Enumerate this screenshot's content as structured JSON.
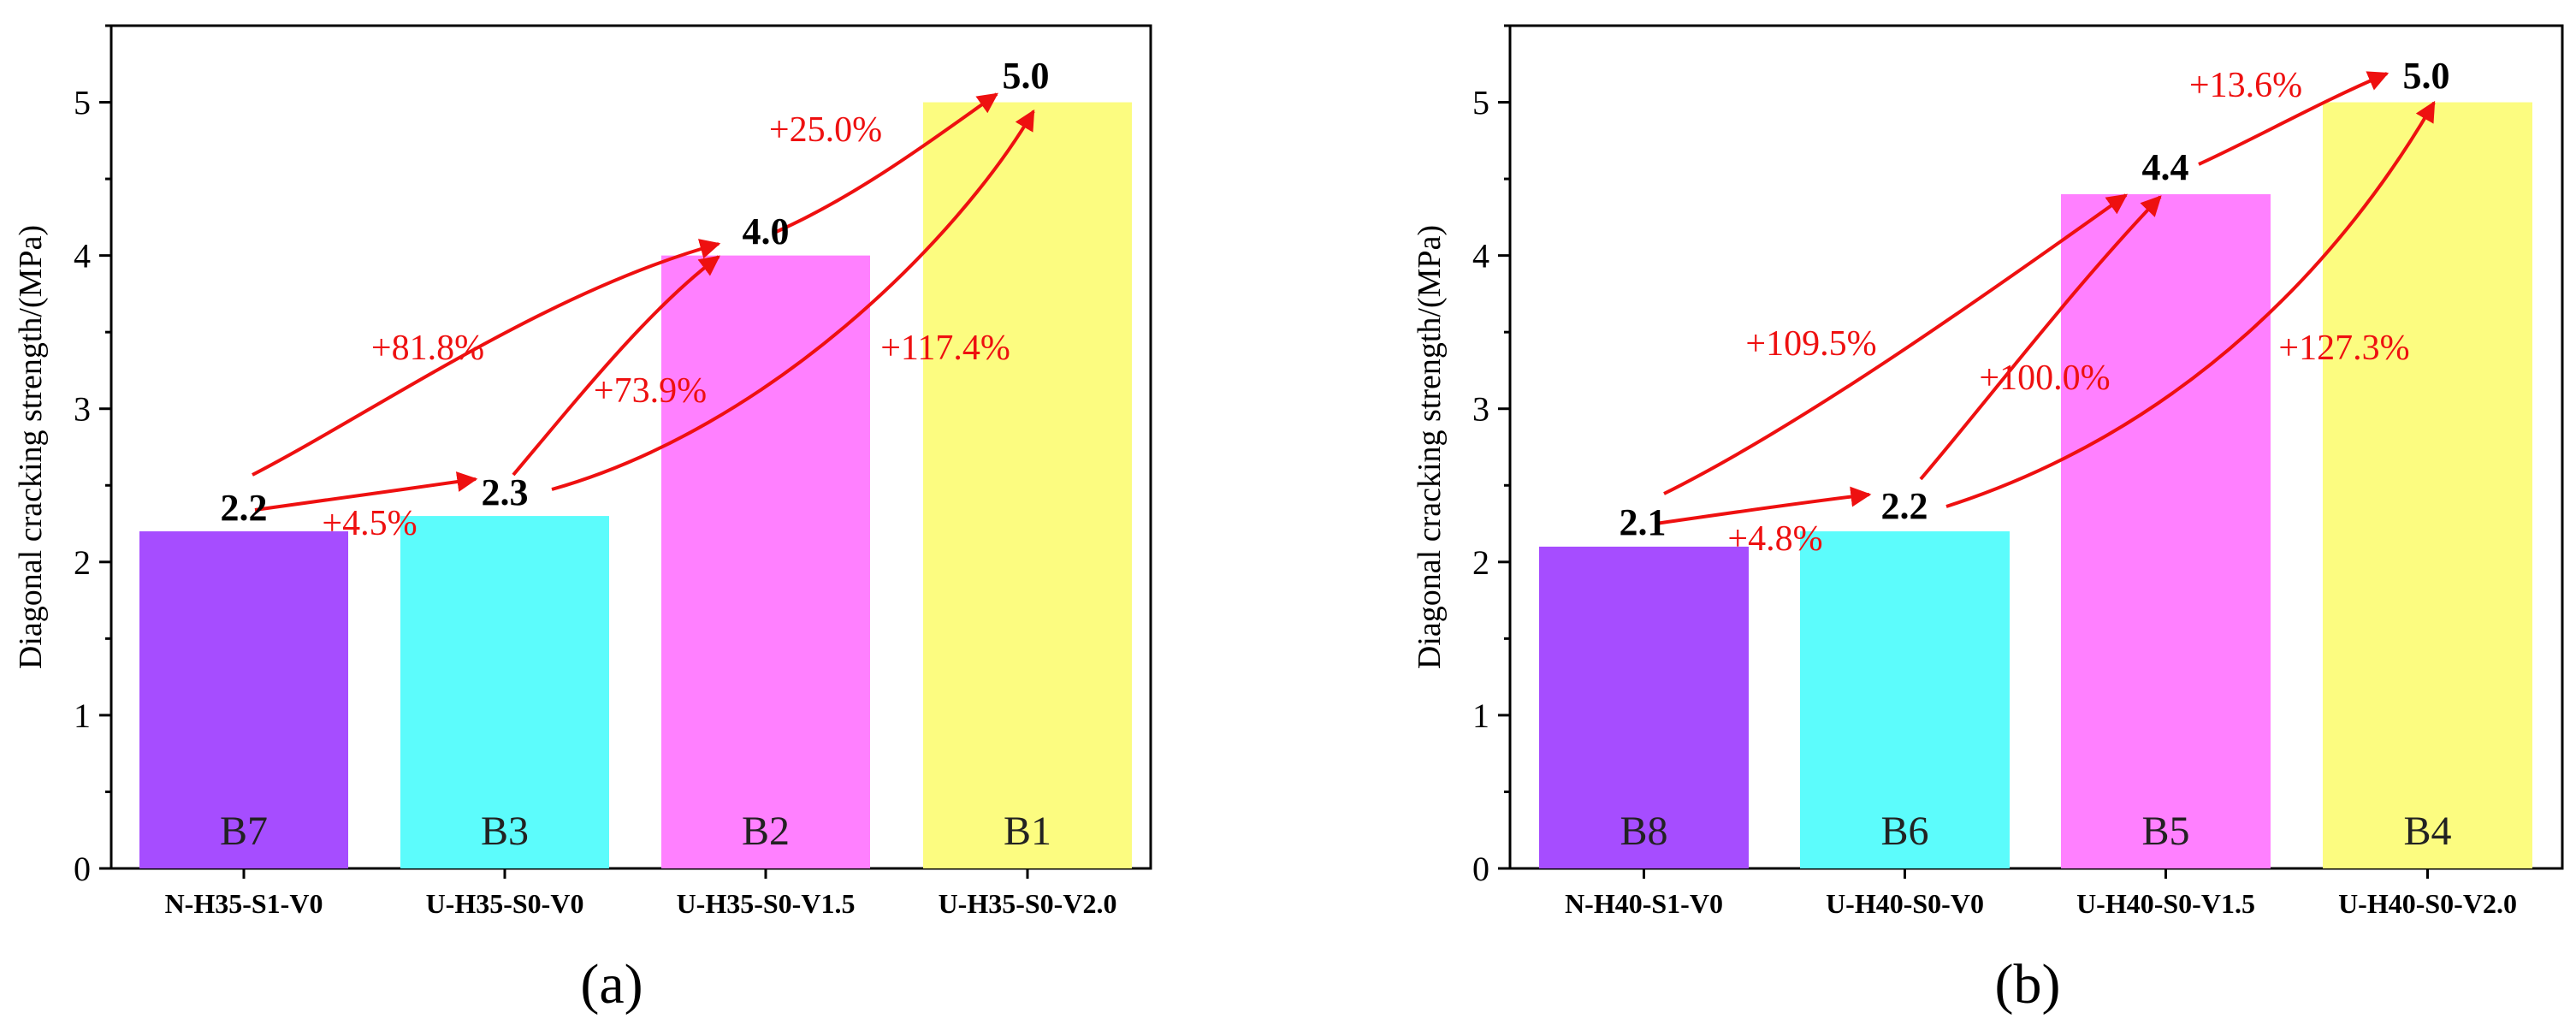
{
  "chart_data": [
    {
      "type": "bar",
      "caption": "(a)",
      "ylabel": "Diagonal cracking strength/(MPa)",
      "ylim": [
        0,
        5.5
      ],
      "yticks": [
        "0",
        "1",
        "2",
        "3",
        "4",
        "5"
      ],
      "categories": [
        "N-H35-S1-V0",
        "U-H35-S0-V0",
        "U-H35-S0-V1.5",
        "U-H35-S0-V2.0"
      ],
      "bar_ids": [
        "B7",
        "B3",
        "B2",
        "B1"
      ],
      "values": [
        2.2,
        2.3,
        4.0,
        5.0
      ],
      "value_labels": [
        "2.2",
        "2.3",
        "4.0",
        "5.0"
      ],
      "colors": [
        "#a64dff",
        "#5cfcfc",
        "#ff80ff",
        "#fcfc80"
      ],
      "increases": [
        {
          "from": 0,
          "to": 1,
          "label": "+4.5%"
        },
        {
          "from": 0,
          "to": 2,
          "label": "+81.8%"
        },
        {
          "from": 1,
          "to": 2,
          "label": "+73.9%"
        },
        {
          "from": 2,
          "to": 3,
          "label": "+25.0%"
        },
        {
          "from": 1,
          "to": 3,
          "label": "+117.4%"
        }
      ]
    },
    {
      "type": "bar",
      "caption": "(b)",
      "ylabel": "Diagonal cracking strength/(MPa)",
      "ylim": [
        0,
        5.5
      ],
      "yticks": [
        "0",
        "1",
        "2",
        "3",
        "4",
        "5"
      ],
      "categories": [
        "N-H40-S1-V0",
        "U-H40-S0-V0",
        "U-H40-S0-V1.5",
        "U-H40-S0-V2.0"
      ],
      "bar_ids": [
        "B8",
        "B6",
        "B5",
        "B4"
      ],
      "values": [
        2.1,
        2.2,
        4.4,
        5.0
      ],
      "value_labels": [
        "2.1",
        "2.2",
        "4.4",
        "5.0"
      ],
      "colors": [
        "#a64dff",
        "#5cfcfc",
        "#ff80ff",
        "#fcfc80"
      ],
      "increases": [
        {
          "from": 0,
          "to": 1,
          "label": "+4.8%"
        },
        {
          "from": 0,
          "to": 2,
          "label": "+109.5%"
        },
        {
          "from": 1,
          "to": 2,
          "label": "+100.0%"
        },
        {
          "from": 2,
          "to": 3,
          "label": "+13.6%"
        },
        {
          "from": 1,
          "to": 3,
          "label": "+127.3%"
        }
      ]
    }
  ]
}
